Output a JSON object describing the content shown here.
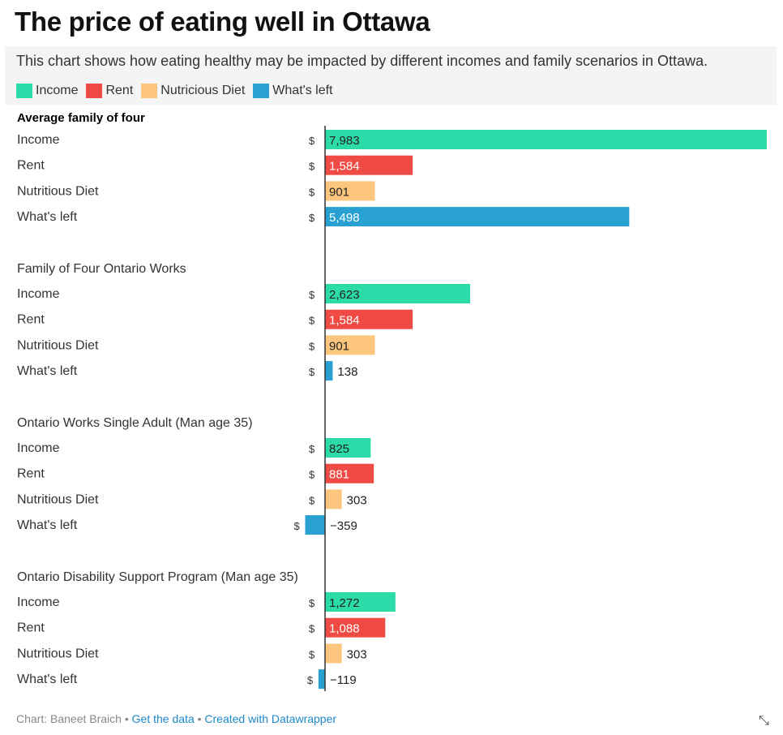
{
  "title": "The price of eating well in Ottawa",
  "subtitle": "This chart shows how eating healthy may be impacted by different incomes and family scenarios in Ottawa.",
  "legend": [
    {
      "label": "Income",
      "color": "#2bdba8"
    },
    {
      "label": "Rent",
      "color": "#ef4b44"
    },
    {
      "label": "Nutricious Diet",
      "color": "#fdc67f"
    },
    {
      "label": "What's left",
      "color": "#28a1d2"
    }
  ],
  "footer": {
    "credit": "Chart: Baneet Braich",
    "sep1": " • ",
    "data_link": "Get the data",
    "sep2": " • ",
    "tool_link": "Created with Datawrapper"
  },
  "chart_data": {
    "type": "bar",
    "orientation": "horizontal",
    "currency_symbol": "$",
    "xlim": [
      -500,
      7983
    ],
    "groups": [
      {
        "name": "Average family of four",
        "items": [
          {
            "label": "Income",
            "series": "Income",
            "value": 7983,
            "display": "7,983"
          },
          {
            "label": "Rent",
            "series": "Rent",
            "value": 1584,
            "display": "1,584"
          },
          {
            "label": "Nutritious Diet",
            "series": "Nutricious Diet",
            "value": 901,
            "display": "901"
          },
          {
            "label": "What's left",
            "series": "What's left",
            "value": 5498,
            "display": "5,498"
          }
        ]
      },
      {
        "name": "Family of Four Ontario Works",
        "items": [
          {
            "label": "Income",
            "series": "Income",
            "value": 2623,
            "display": "2,623"
          },
          {
            "label": "Rent",
            "series": "Rent",
            "value": 1584,
            "display": "1,584"
          },
          {
            "label": "Nutritious Diet",
            "series": "Nutricious Diet",
            "value": 901,
            "display": "901"
          },
          {
            "label": "What's left",
            "series": "What's left",
            "value": 138,
            "display": "138"
          }
        ]
      },
      {
        "name": "Ontario Works Single Adult (Man age 35)",
        "items": [
          {
            "label": "Income",
            "series": "Income",
            "value": 825,
            "display": "825"
          },
          {
            "label": "Rent",
            "series": "Rent",
            "value": 881,
            "display": "881"
          },
          {
            "label": "Nutritious Diet",
            "series": "Nutricious Diet",
            "value": 303,
            "display": "303"
          },
          {
            "label": "What's left",
            "series": "What's left",
            "value": -359,
            "display": "−359"
          }
        ]
      },
      {
        "name": "Ontario Disability Support Program (Man age 35)",
        "items": [
          {
            "label": "Income",
            "series": "Income",
            "value": 1272,
            "display": "1,272"
          },
          {
            "label": "Rent",
            "series": "Rent",
            "value": 1088,
            "display": "1,088"
          },
          {
            "label": "Nutritious Diet",
            "series": "Nutricious Diet",
            "value": 303,
            "display": "303"
          },
          {
            "label": "What's left",
            "series": "What's left",
            "value": -119,
            "display": "−119"
          }
        ]
      }
    ]
  }
}
